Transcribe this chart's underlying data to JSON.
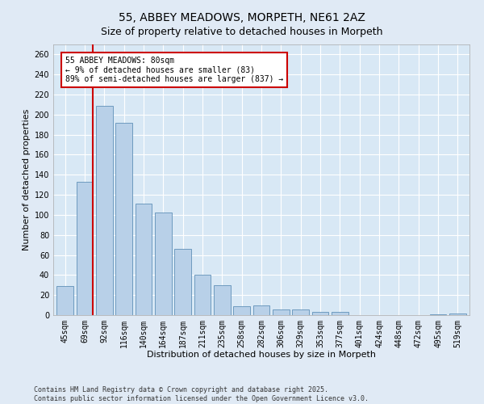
{
  "title": "55, ABBEY MEADOWS, MORPETH, NE61 2AZ",
  "subtitle": "Size of property relative to detached houses in Morpeth",
  "xlabel": "Distribution of detached houses by size in Morpeth",
  "ylabel": "Number of detached properties",
  "categories": [
    "45sqm",
    "69sqm",
    "92sqm",
    "116sqm",
    "140sqm",
    "164sqm",
    "187sqm",
    "211sqm",
    "235sqm",
    "258sqm",
    "282sqm",
    "306sqm",
    "329sqm",
    "353sqm",
    "377sqm",
    "401sqm",
    "424sqm",
    "448sqm",
    "472sqm",
    "495sqm",
    "519sqm"
  ],
  "values": [
    29,
    133,
    209,
    192,
    111,
    102,
    66,
    40,
    30,
    9,
    10,
    6,
    6,
    3,
    3,
    0,
    0,
    0,
    0,
    1,
    2
  ],
  "bar_color": "#b8d0e8",
  "bar_edge_color": "#6090b8",
  "vline_color": "#cc0000",
  "annotation_text": "55 ABBEY MEADOWS: 80sqm\n← 9% of detached houses are smaller (83)\n89% of semi-detached houses are larger (837) →",
  "annotation_box_edgecolor": "#cc0000",
  "annotation_fontsize": 7,
  "ylim": [
    0,
    270
  ],
  "yticks": [
    0,
    20,
    40,
    60,
    80,
    100,
    120,
    140,
    160,
    180,
    200,
    220,
    240,
    260
  ],
  "title_fontsize": 10,
  "xlabel_fontsize": 8,
  "ylabel_fontsize": 8,
  "tick_fontsize": 7,
  "background_color": "#e0eaf5",
  "plot_bg_color": "#d8e8f5",
  "grid_color": "#ffffff",
  "footer_line1": "Contains HM Land Registry data © Crown copyright and database right 2025.",
  "footer_line2": "Contains public sector information licensed under the Open Government Licence v3.0."
}
